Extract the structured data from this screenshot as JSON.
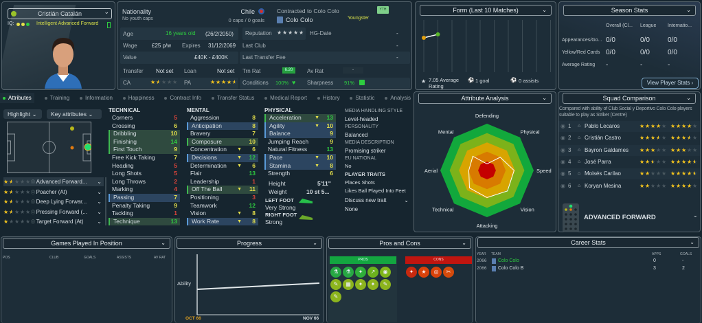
{
  "player": {
    "name": "Cristián Catalán",
    "iq_label": "IQ:",
    "role_desc": "Intelligent Advanced Forward"
  },
  "info": {
    "nationality_label": "Nationality",
    "nationality": "Chile",
    "youth_caps": "No youth caps",
    "caps": "0 caps / 0 goals",
    "contract_label": "Contracted to Colo Colo",
    "club": "Colo Colo",
    "status": "Youngster",
    "status_badge": "YTH",
    "age_label": "Age",
    "age": "16 years old",
    "dob": "(26/2/2050)",
    "wage_label": "Wage",
    "wage": "£25 p/w",
    "expires_label": "Expires",
    "expires": "31/12/2069",
    "value_label": "Value",
    "value": "£40K - £400K",
    "transfer_label": "Transfer",
    "transfer": "Not set",
    "loan_label": "Loan",
    "loan": "Not set",
    "ca_label": "CA",
    "ca_stars": 1.5,
    "pa_label": "PA",
    "pa_stars": 4.5,
    "reputation_label": "Reputation",
    "reputation_stars": 0,
    "hg_label": "HG-Date",
    "hg": "-",
    "last_club_label": "Last Club",
    "last_club": "-",
    "last_fee_label": "Last Transfer Fee",
    "last_fee": "-",
    "trn_label": "Trn Rat",
    "trn": "6.20",
    "av_label": "Av Rat",
    "av": "-",
    "conditions_label": "Conditions",
    "conditions": "100%",
    "sharpness_label": "Sharpness",
    "sharpness": "91%"
  },
  "form": {
    "title": "Form (Last 10 Matches)",
    "avg": "7.05 Average Rating",
    "goals": "1 goal",
    "assists": "0 assists"
  },
  "season": {
    "title": "Season Stats",
    "cols": [
      "Overall (Cl...",
      "League",
      "Internatio..."
    ],
    "rows": [
      {
        "label": "Appearances/Go...",
        "vals": [
          "0/0",
          "0/0",
          "0/0"
        ]
      },
      {
        "label": "Yellow/Red Cards",
        "vals": [
          "0/0",
          "0/0",
          "0/0"
        ]
      },
      {
        "label": "Average Rating",
        "vals": [
          "-",
          "-",
          "-"
        ]
      }
    ],
    "button": "View Player Stats ›"
  },
  "tabs": [
    "Attributes",
    "Training",
    "Information",
    "Happiness",
    "Contract Info",
    "Transfer Status",
    "Medical Report",
    "History",
    "Statistic",
    "Analysis"
  ],
  "attrs": {
    "highlight": "Highlight",
    "key": "Key attributes",
    "roles": [
      {
        "name": "Advanced Forward...",
        "stars": 1.5
      },
      {
        "name": "Poacher (At)",
        "stars": 1.5
      },
      {
        "name": "Deep Lying Forwar...",
        "stars": 1.5
      },
      {
        "name": "Pressing Forward (...",
        "stars": 1.5
      },
      {
        "name": "Target Forward (At)",
        "stars": 1
      }
    ],
    "technical_title": "TECHNICAL",
    "technical": [
      {
        "n": "Corners",
        "v": 5,
        "h": ""
      },
      {
        "n": "Crossing",
        "v": 6,
        "h": ""
      },
      {
        "n": "Dribbling",
        "v": 10,
        "h": "g"
      },
      {
        "n": "Finishing",
        "v": 14,
        "h": "g"
      },
      {
        "n": "First Touch",
        "v": 9,
        "h": "g"
      },
      {
        "n": "Free Kick Taking",
        "v": 7,
        "h": ""
      },
      {
        "n": "Heading",
        "v": 5,
        "h": ""
      },
      {
        "n": "Long Shots",
        "v": 5,
        "h": ""
      },
      {
        "n": "Long Throws",
        "v": 2,
        "h": ""
      },
      {
        "n": "Marking",
        "v": 4,
        "h": ""
      },
      {
        "n": "Passing",
        "v": 7,
        "h": "b"
      },
      {
        "n": "Penalty Taking",
        "v": 9,
        "h": ""
      },
      {
        "n": "Tackling",
        "v": 1,
        "h": ""
      },
      {
        "n": "Technique",
        "v": 13,
        "h": "g"
      }
    ],
    "mental_title": "MENTAL",
    "mental": [
      {
        "n": "Aggression",
        "v": 8,
        "h": ""
      },
      {
        "n": "Anticipation",
        "v": 8,
        "h": "b"
      },
      {
        "n": "Bravery",
        "v": 7,
        "h": ""
      },
      {
        "n": "Composure",
        "v": 10,
        "h": "g"
      },
      {
        "n": "Concentration",
        "v": 6,
        "h": "",
        "t": 1
      },
      {
        "n": "Decisions",
        "v": 12,
        "h": "b",
        "t": 1
      },
      {
        "n": "Determination",
        "v": 6,
        "h": "",
        "t": 1
      },
      {
        "n": "Flair",
        "v": 13,
        "h": ""
      },
      {
        "n": "Leadership",
        "v": 1,
        "h": ""
      },
      {
        "n": "Off The Ball",
        "v": 11,
        "h": "g",
        "t": 1
      },
      {
        "n": "Positioning",
        "v": 3,
        "h": ""
      },
      {
        "n": "Teamwork",
        "v": 12,
        "h": ""
      },
      {
        "n": "Vision",
        "v": 8,
        "h": "",
        "t": 1
      },
      {
        "n": "Work Rate",
        "v": 8,
        "h": "b",
        "t": 1
      }
    ],
    "physical_title": "PHYSICAL",
    "physical": [
      {
        "n": "Acceleration",
        "v": 13,
        "h": "g",
        "t": 1
      },
      {
        "n": "Agility",
        "v": 10,
        "h": "b",
        "t": 1
      },
      {
        "n": "Balance",
        "v": 9,
        "h": "b"
      },
      {
        "n": "Jumping Reach",
        "v": 9,
        "h": ""
      },
      {
        "n": "Natural Fitness",
        "v": 13,
        "h": ""
      },
      {
        "n": "Pace",
        "v": 10,
        "h": "b",
        "t": 1
      },
      {
        "n": "Stamina",
        "v": 8,
        "h": "b",
        "t": 1
      },
      {
        "n": "Strength",
        "v": 6,
        "h": ""
      }
    ],
    "height_label": "Height",
    "height": "5'11\"",
    "weight_label": "Weight",
    "weight": "10 st 5...",
    "left_foot_label": "LEFT FOOT",
    "left_foot": "Very Strong",
    "right_foot_label": "RIGHT FOOT",
    "right_foot": "Strong",
    "media_style_label": "MEDIA HANDLING STYLE",
    "media_style": "Level-headed",
    "personality_label": "PERSONALITY",
    "personality": "Balanced",
    "media_desc_label": "MEDIA DESCRIPTION",
    "media_desc": "Promising striker",
    "eu_label": "EU NATIONAL",
    "eu": "No",
    "traits_label": "PLAYER TRAITS",
    "traits": [
      "Places Shots",
      "Likes Ball Played Into Feet"
    ],
    "discuss": "Discuss new trait",
    "none": "None"
  },
  "analysis": {
    "title": "Attribute Analysis",
    "axes": [
      "Defending",
      "Physical",
      "Speed",
      "Vision",
      "Attacking",
      "Technical",
      "Aerial",
      "Mental"
    ],
    "values": [
      14,
      40,
      58,
      62,
      58,
      53,
      39,
      43
    ]
  },
  "squad": {
    "title": "Squad Comparison",
    "desc": "Compared with ability of Club Social y Deportivo Colo Colo players suitable to play as Striker (Centre)",
    "players": [
      {
        "rank": "1",
        "name": "Pablo Lecaros",
        "ca": 4,
        "pa": 4
      },
      {
        "rank": "2",
        "name": "Cristián Castro",
        "ca": 3.5,
        "pa": 3.5
      },
      {
        "rank": "3",
        "name": "Bayron Galdames",
        "ca": 3,
        "pa": 3
      },
      {
        "rank": "4",
        "name": "José Parra",
        "ca": 2.5,
        "pa": 4.5
      },
      {
        "rank": "5",
        "name": "Moisés Carilao",
        "ca": 2,
        "pa": 4.5
      },
      {
        "rank": "6",
        "name": "Koryan Mesina",
        "ca": 2,
        "pa": 4
      }
    ],
    "role": "ADVANCED FORWARD"
  },
  "games": {
    "title": "Games Played In Position",
    "cols": [
      "POS",
      "CLUB",
      "GOALS",
      "ASSISTS",
      "AV RAT"
    ]
  },
  "progress": {
    "title": "Progress",
    "ylabel": "Ability",
    "x_start": "OCT 66",
    "x_end": "NOV 66"
  },
  "proscons": {
    "title": "Pros and Cons",
    "pros": "PROS",
    "cons": "CONS"
  },
  "career": {
    "title": "Career Stats",
    "cols": [
      "YEAR",
      "TEAM",
      "APPS",
      "GOALS"
    ],
    "rows": [
      {
        "year": "2066",
        "team": "Colo Colo",
        "apps": "0",
        "goals": "-"
      },
      {
        "year": "2066",
        "team": "Colo Colo B",
        "apps": "3",
        "goals": "2"
      }
    ]
  },
  "colors": {
    "good": "#2ecc40",
    "mid": "#e5e04a",
    "bad": "#e0443a",
    "star": "#f2c21b"
  }
}
